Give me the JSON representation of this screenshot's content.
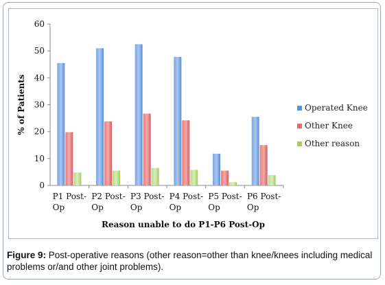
{
  "figure": {
    "caption_lead": "Figure 9:",
    "caption_text": " Post-operative reasons (other reason=other than knee/knees including medical problems or/and other joint problems)."
  },
  "chart_data": {
    "type": "bar",
    "categories": [
      [
        "P1 Post-",
        "Op"
      ],
      [
        "P2 Post-",
        "Op"
      ],
      [
        "P3 Post-",
        "Op"
      ],
      [
        "P4 Post-",
        "Op"
      ],
      [
        "P5 Post-",
        "Op"
      ],
      [
        "P6 Post-",
        "Op"
      ]
    ],
    "series": [
      {
        "name": "Operated Knee",
        "values": [
          45.5,
          51,
          52.5,
          47.8,
          11.8,
          25.5
        ],
        "color": "#5b8fd6"
      },
      {
        "name": "Other Knee",
        "values": [
          19.8,
          23.8,
          26.7,
          24.2,
          5.5,
          15.0
        ],
        "color": "#e46c6c"
      },
      {
        "name": "Other reason",
        "values": [
          4.8,
          5.5,
          6.5,
          5.8,
          1.2,
          3.8
        ],
        "color": "#9fcf5f"
      }
    ],
    "title": "",
    "xlabel": "Reason unable to do P1-P6 Post-Op",
    "ylabel": "% of Patients",
    "ylim": [
      0,
      60
    ],
    "yticks": [
      0,
      10,
      20,
      30,
      40,
      50,
      60
    ],
    "grid": false,
    "legend_position": "right"
  }
}
